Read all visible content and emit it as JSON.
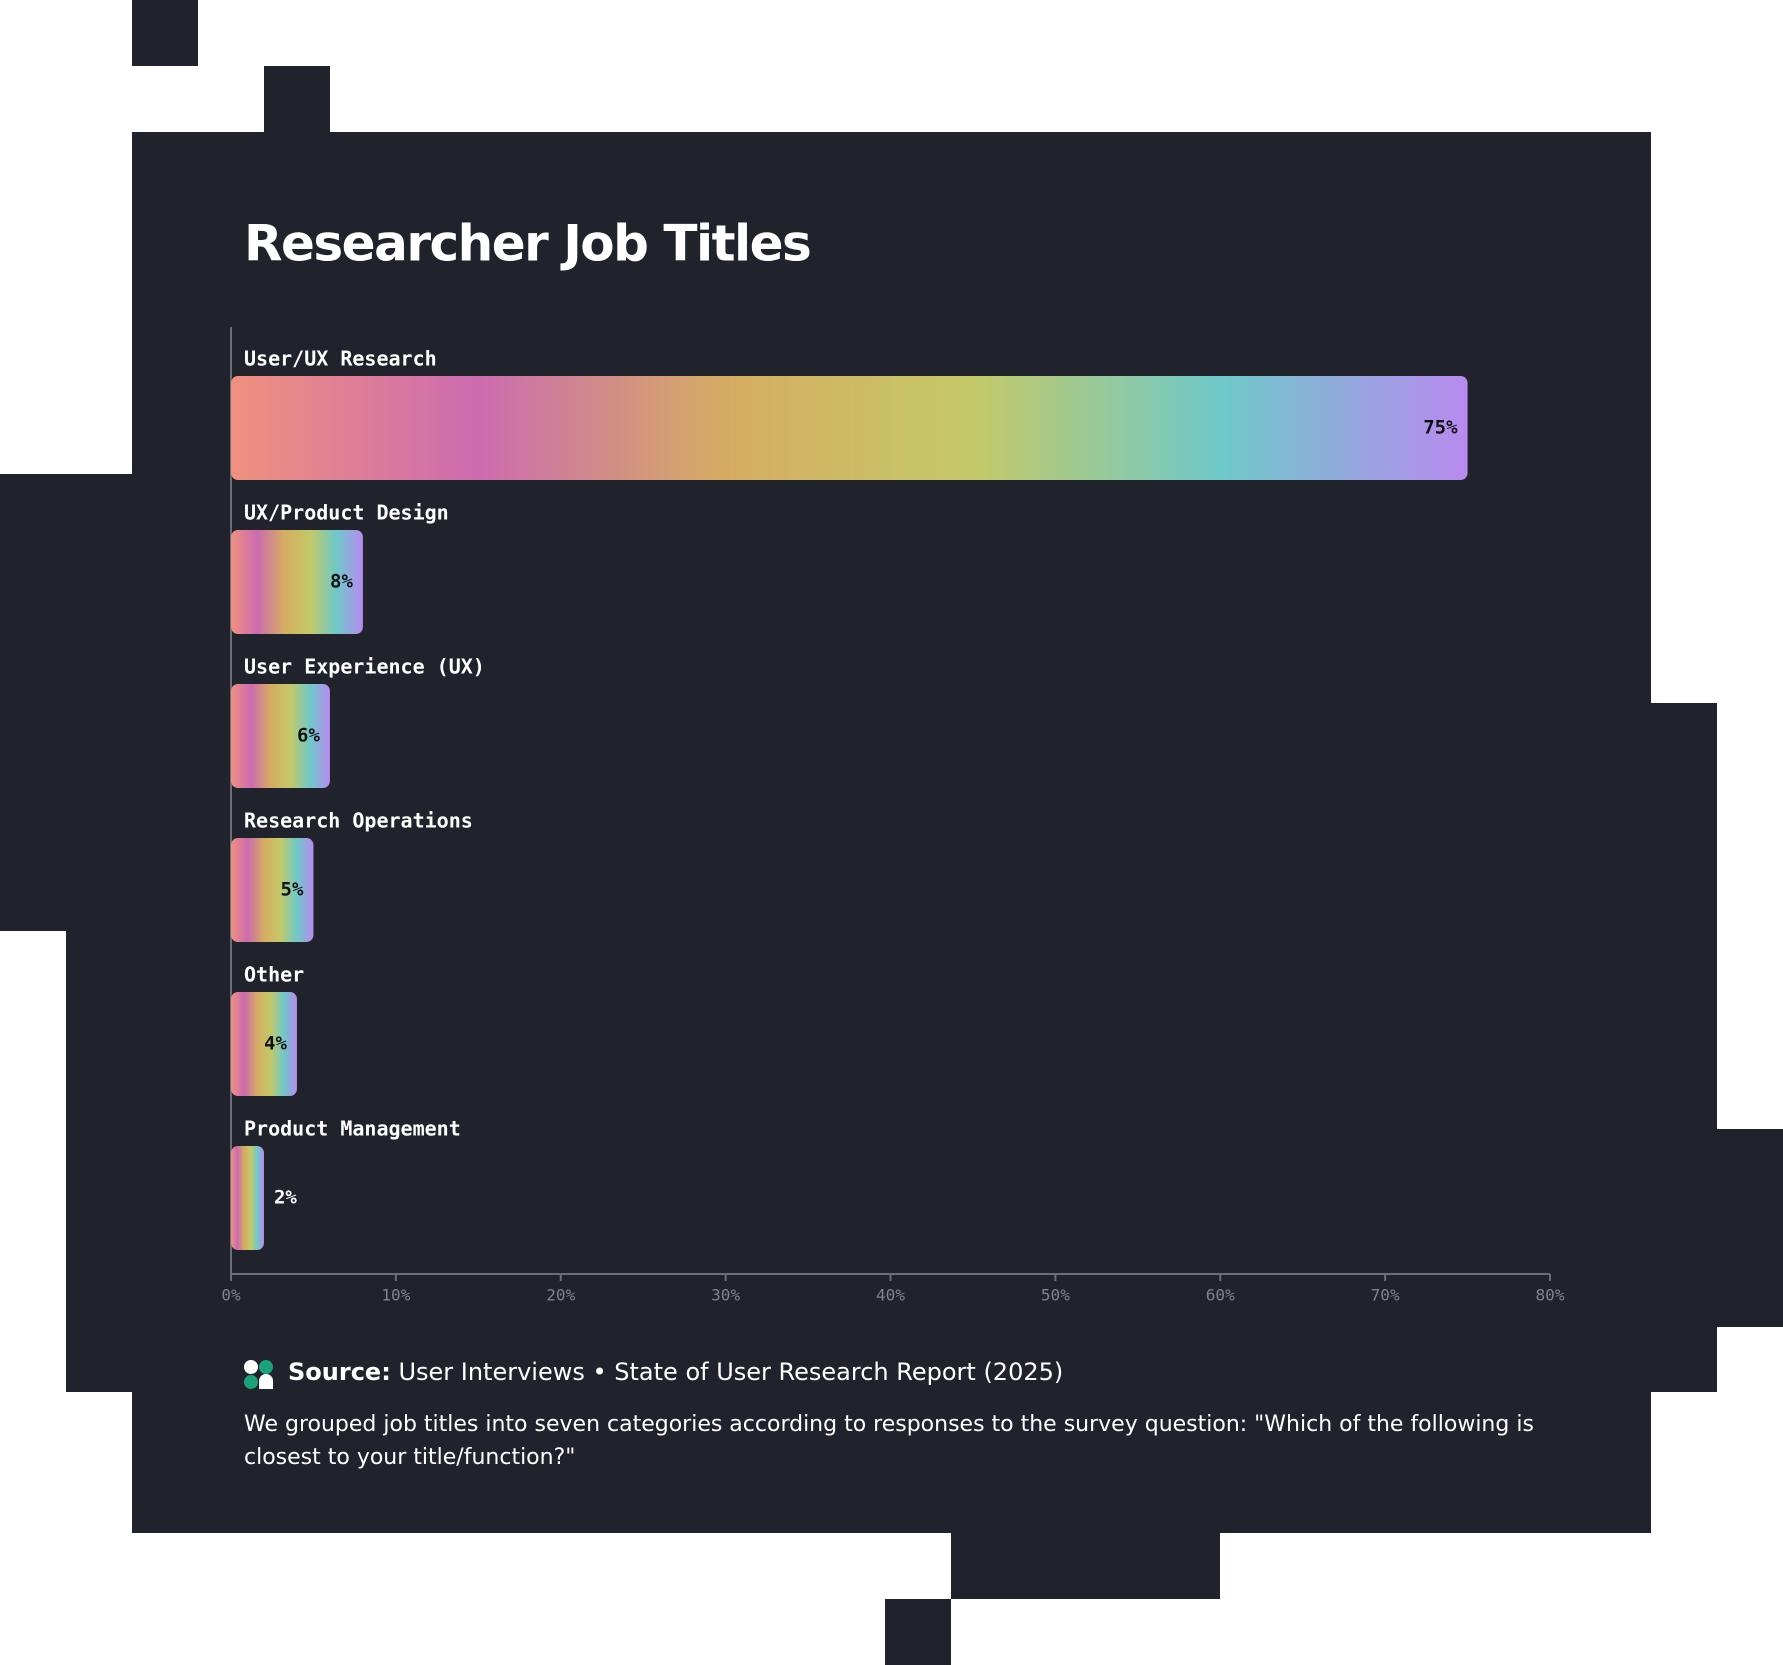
{
  "chart_data": {
    "type": "hbar",
    "title": "Researcher Job Titles",
    "categories": [
      "User/UX Research",
      "UX/Product Design",
      "User Experience (UX)",
      "Research Operations",
      "Other",
      "Product Management"
    ],
    "values": [
      75,
      8,
      6,
      5,
      4,
      2
    ],
    "value_labels": [
      "75%",
      "8%",
      "6%",
      "5%",
      "4%",
      "2%"
    ],
    "gradient": [
      "#f0917f",
      "#cc6bb0",
      "#d6ac62",
      "#c4c968",
      "#6ec9c9",
      "#b88af0"
    ],
    "xlim": [
      0,
      80
    ],
    "xticks": [
      {
        "value": 0,
        "label": "0%"
      },
      {
        "value": 10,
        "label": "10%"
      },
      {
        "value": 20,
        "label": "20%"
      },
      {
        "value": 30,
        "label": "30%"
      },
      {
        "value": 40,
        "label": "40%"
      },
      {
        "value": 50,
        "label": "50%"
      },
      {
        "value": 60,
        "label": "60%"
      },
      {
        "value": 70,
        "label": "70%"
      },
      {
        "value": 80,
        "label": "80%"
      }
    ],
    "source_label": "Source:",
    "source": "User Interviews • State of User Research Report (2025)",
    "note": "We grouped job titles into seven categories according to responses to the survey question: \"Which of the following is closest to your title/function?\""
  }
}
